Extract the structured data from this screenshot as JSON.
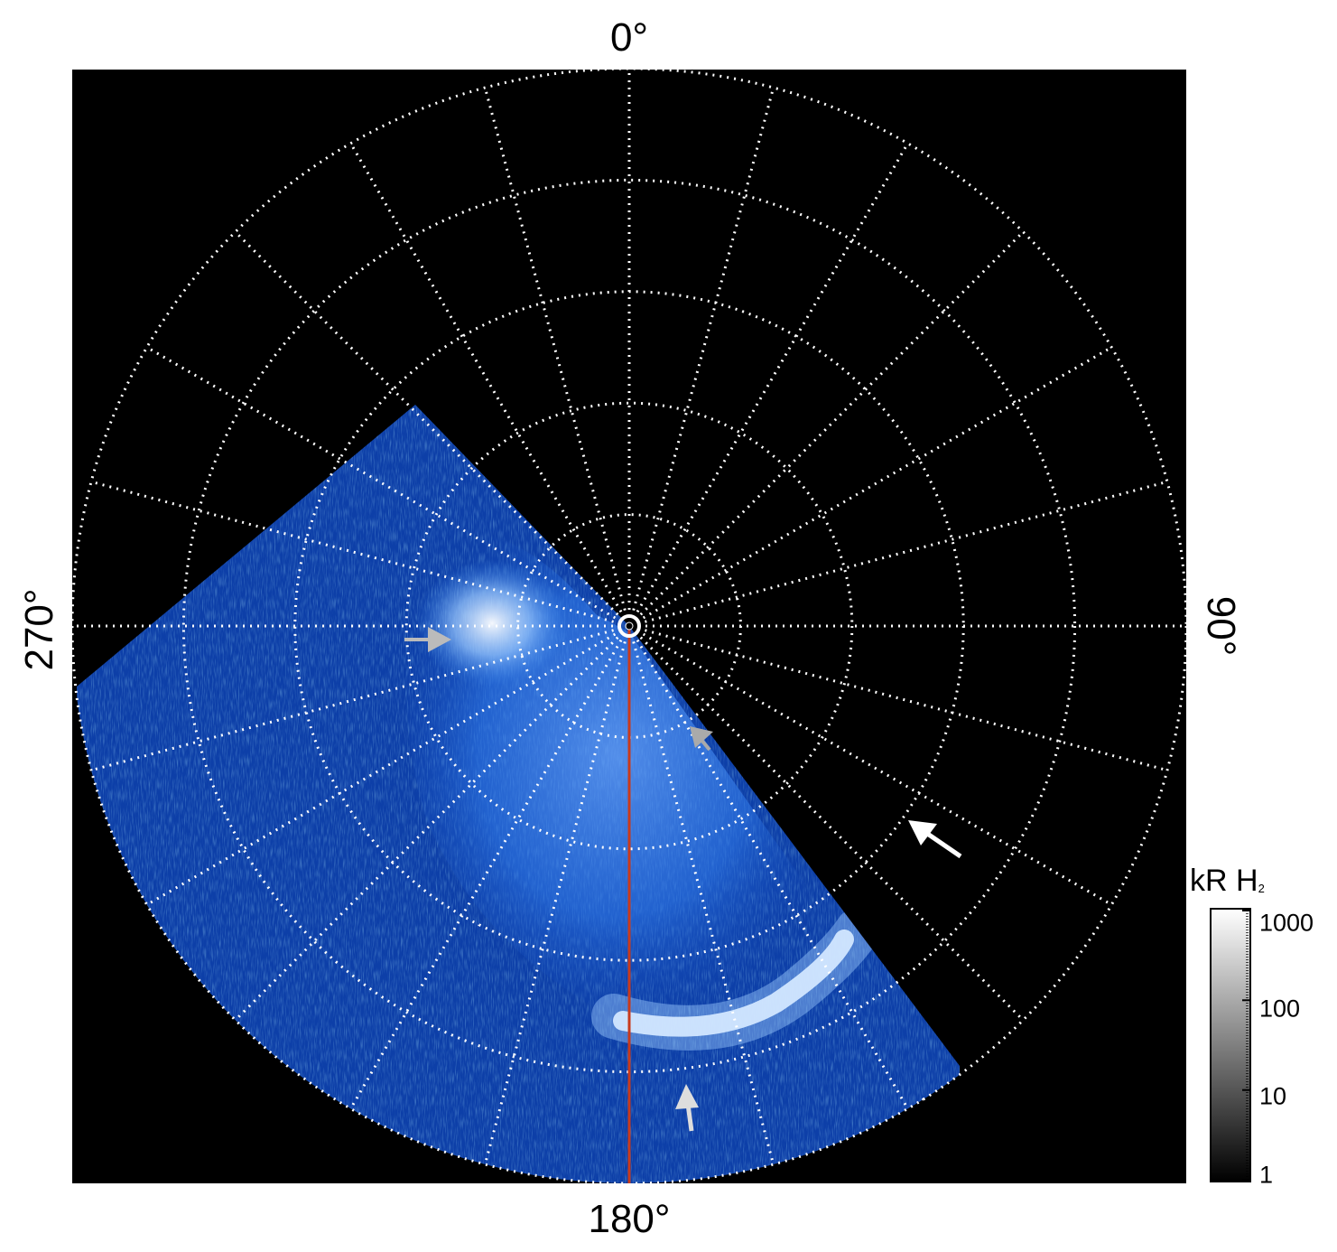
{
  "map": {
    "projection": "polar",
    "longitude_labels": {
      "top": "0°",
      "right": "90°",
      "bottom": "180°",
      "left": "270°"
    },
    "graticule": {
      "meridian_spacing_deg": 15,
      "parallel_rings": 5,
      "style": "dotted",
      "color": "#ffffff"
    },
    "central_meridian_line_color": "#c83a1c",
    "background_color": "#000000",
    "emission_colormap": [
      "#000000",
      "#0a2c7a",
      "#1e5fd0",
      "#3f8cf0",
      "#9ccaff",
      "#ffffff"
    ]
  },
  "colorbar": {
    "title": "kR H",
    "title_subscript": "2",
    "scale": "log",
    "range": [
      1,
      1000
    ],
    "tick_labels": [
      "1000",
      "100",
      "10",
      "1"
    ],
    "colors": [
      "#000000",
      "#ffffff"
    ]
  },
  "annotations": {
    "arrows": [
      {
        "name": "arrow-west-dawn",
        "color": "#bbbbbb"
      },
      {
        "name": "arrow-near-pole",
        "color": "#aaaaaa"
      },
      {
        "name": "arrow-east",
        "color": "#ffffff"
      },
      {
        "name": "arrow-south",
        "color": "#dddddd"
      }
    ]
  }
}
